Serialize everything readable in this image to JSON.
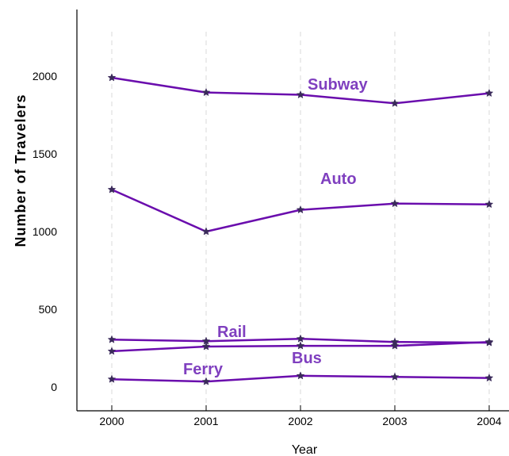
{
  "chart_data": {
    "type": "line",
    "xlabel": "Year",
    "ylabel": "Number of Travelers",
    "x": [
      "2000",
      "2001",
      "2002",
      "2003",
      "2004"
    ],
    "y_ticks": [
      0,
      500,
      1000,
      1500,
      2000
    ],
    "ylim": [
      -120,
      2300
    ],
    "grid": "vertical dashed",
    "legend": "none (inline series labels)",
    "colors": {
      "line": "#6a0dad",
      "label": "#7f3fbf",
      "marker": "#3a2a5a",
      "grid": "#d9d9d9"
    },
    "series": [
      {
        "name": "Subway",
        "values": [
          1990,
          1895,
          1880,
          1825,
          1890
        ]
      },
      {
        "name": "Auto",
        "values": [
          1270,
          1000,
          1140,
          1180,
          1175
        ]
      },
      {
        "name": "Rail",
        "values": [
          305,
          295,
          310,
          290,
          285
        ]
      },
      {
        "name": "Bus",
        "values": [
          230,
          260,
          265,
          265,
          290
        ]
      },
      {
        "name": "Ferry",
        "values": [
          50,
          35,
          72,
          65,
          58
        ]
      }
    ]
  }
}
